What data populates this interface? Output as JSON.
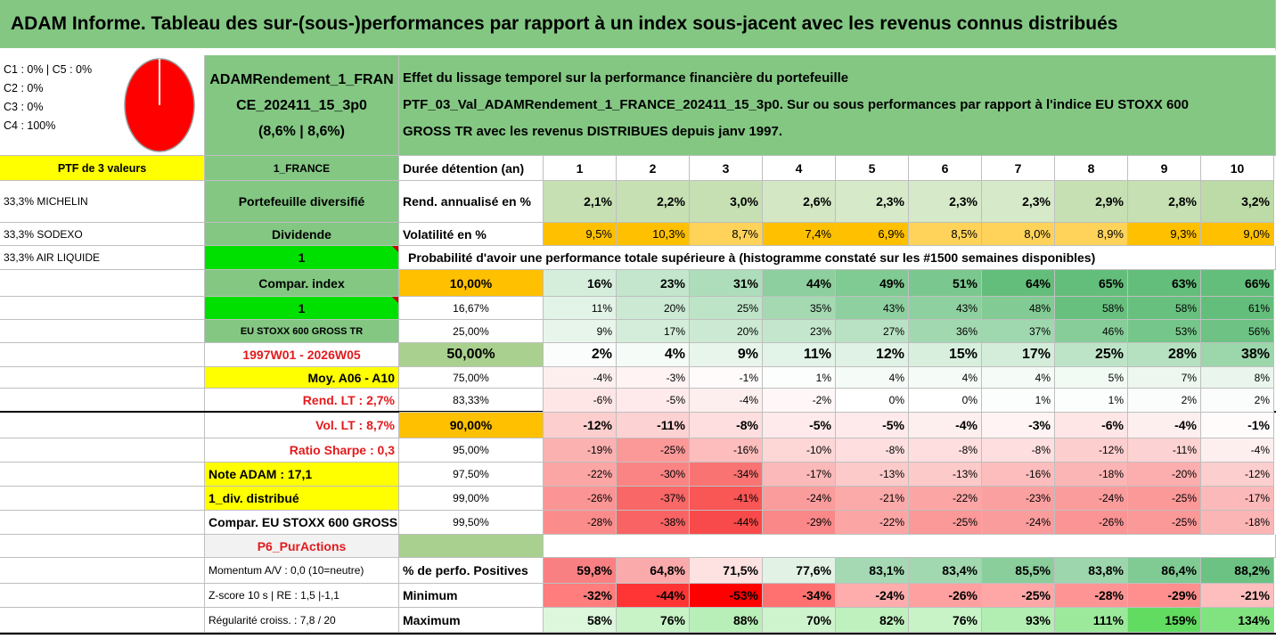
{
  "header": {
    "title": "ADAM Informe. Tableau des sur-(sous-)performances par rapport à un index sous-jacent avec les revenus connus distribués"
  },
  "info": {
    "legend": [
      "C1 : 0% | C5 : 0%",
      "C2 : 0%",
      "C3 : 0%",
      "C4 : 100%"
    ],
    "pie": {
      "C4": 100,
      "C1": 0,
      "C2": 0,
      "C3": 0,
      "C5": 0,
      "color": "#ff0000"
    },
    "name_lines": [
      "ADAMRendement_1_FRAN",
      "CE_202411_15_3p0",
      "(8,6% | 8,6%)"
    ],
    "desc_lines": [
      "Effet du lissage temporel sur la performance financière du portefeuille",
      "PTF_03_Val_ADAMRendement_1_FRANCE_202411_15_3p0. Sur ou sous performances par rapport à l'indice EU STOXX 600",
      "GROSS TR avec les revenus DISTRIBUES depuis janv 1997."
    ]
  },
  "left": {
    "ptf_label": "PTF de 3 valeurs",
    "holdings": [
      "33,3% MICHELIN",
      "33,3% SODEXO",
      "33,3% AIR LIQUIDE"
    ]
  },
  "mid": {
    "france": "1_FRANCE",
    "diversified": "Portefeuille diversifié",
    "dividende": "Dividende",
    "one_a": "1",
    "compar_index": "Compar. index",
    "one_b": "1",
    "index_name": "EU STOXX 600 GROSS TR",
    "period": "1997W01 - 2026W05",
    "moy": "Moy. A06 - A10",
    "rend_lt": "Rend. LT : 2,7%",
    "vol_lt": "Vol. LT : 8,7%",
    "sharpe": "Ratio Sharpe : 0,3",
    "note": "Note ADAM : 17,1",
    "div": "1_div. distribué",
    "compar": "Compar. EU STOXX 600 GROSS TR",
    "p6": "P6_PurActions",
    "momentum": "Momentum A/V : 0,0 (10=neutre)",
    "zscore": "Z-score 10 s | RE : 1,5 |-1,1",
    "regularite": "Régularité croiss. : 7,8 / 20"
  },
  "table": {
    "duree_label": "Durée détention (an)",
    "years": [
      "1",
      "2",
      "3",
      "4",
      "5",
      "6",
      "7",
      "8",
      "9",
      "10"
    ],
    "rend_label": "Rend. annualisé en %",
    "rend": [
      "2,1%",
      "2,2%",
      "3,0%",
      "2,6%",
      "2,3%",
      "2,3%",
      "2,3%",
      "2,9%",
      "2,8%",
      "3,2%"
    ],
    "vol_label": "Volatilité en %",
    "vol": [
      "9,5%",
      "10,3%",
      "8,7%",
      "7,4%",
      "6,9%",
      "8,5%",
      "8,0%",
      "8,9%",
      "9,3%",
      "9,0%"
    ],
    "prob_label": "Probabilité d'avoir une performance totale supérieure à (histogramme constaté sur les #1500 semaines disponibles)",
    "quantile_rows": [
      {
        "label": "10,00%",
        "values": [
          "16%",
          "23%",
          "31%",
          "44%",
          "49%",
          "51%",
          "64%",
          "65%",
          "63%",
          "66%"
        ]
      },
      {
        "label": "16,67%",
        "values": [
          "11%",
          "20%",
          "25%",
          "35%",
          "43%",
          "43%",
          "48%",
          "58%",
          "58%",
          "61%"
        ]
      },
      {
        "label": "25,00%",
        "values": [
          "9%",
          "17%",
          "20%",
          "23%",
          "27%",
          "36%",
          "37%",
          "46%",
          "53%",
          "56%"
        ]
      },
      {
        "label": "50,00%",
        "values": [
          "2%",
          "4%",
          "9%",
          "11%",
          "12%",
          "15%",
          "17%",
          "25%",
          "28%",
          "38%"
        ]
      },
      {
        "label": "75,00%",
        "values": [
          "-4%",
          "-3%",
          "-1%",
          "1%",
          "4%",
          "4%",
          "4%",
          "5%",
          "7%",
          "8%"
        ]
      },
      {
        "label": "83,33%",
        "values": [
          "-6%",
          "-5%",
          "-4%",
          "-2%",
          "0%",
          "0%",
          "1%",
          "1%",
          "2%",
          "2%"
        ]
      },
      {
        "label": "90,00%",
        "values": [
          "-12%",
          "-11%",
          "-8%",
          "-5%",
          "-5%",
          "-4%",
          "-3%",
          "-6%",
          "-4%",
          "-1%"
        ]
      },
      {
        "label": "95,00%",
        "values": [
          "-19%",
          "-25%",
          "-16%",
          "-10%",
          "-8%",
          "-8%",
          "-8%",
          "-12%",
          "-11%",
          "-4%"
        ]
      },
      {
        "label": "97,50%",
        "values": [
          "-22%",
          "-30%",
          "-34%",
          "-17%",
          "-13%",
          "-13%",
          "-16%",
          "-18%",
          "-20%",
          "-12%"
        ]
      },
      {
        "label": "99,00%",
        "values": [
          "-26%",
          "-37%",
          "-41%",
          "-24%",
          "-21%",
          "-22%",
          "-23%",
          "-24%",
          "-25%",
          "-17%"
        ]
      },
      {
        "label": "99,50%",
        "values": [
          "-28%",
          "-38%",
          "-44%",
          "-29%",
          "-22%",
          "-25%",
          "-24%",
          "-26%",
          "-25%",
          "-18%"
        ]
      }
    ],
    "pos_label": "% de perfo. Positives",
    "pos": [
      "59,8%",
      "64,8%",
      "71,5%",
      "77,6%",
      "83,1%",
      "83,4%",
      "85,5%",
      "83,8%",
      "86,4%",
      "88,2%"
    ],
    "min_label": "Minimum",
    "min": [
      "-32%",
      "-44%",
      "-53%",
      "-34%",
      "-24%",
      "-26%",
      "-25%",
      "-28%",
      "-29%",
      "-21%"
    ],
    "max_label": "Maximum",
    "max": [
      "58%",
      "76%",
      "88%",
      "70%",
      "82%",
      "76%",
      "93%",
      "111%",
      "159%",
      "134%"
    ]
  },
  "colors": {
    "header_green": "#83c783",
    "yellow": "#ffff00",
    "orange": "#ffc000",
    "bright_green": "#00e000",
    "text_red": "#e31a1c"
  }
}
